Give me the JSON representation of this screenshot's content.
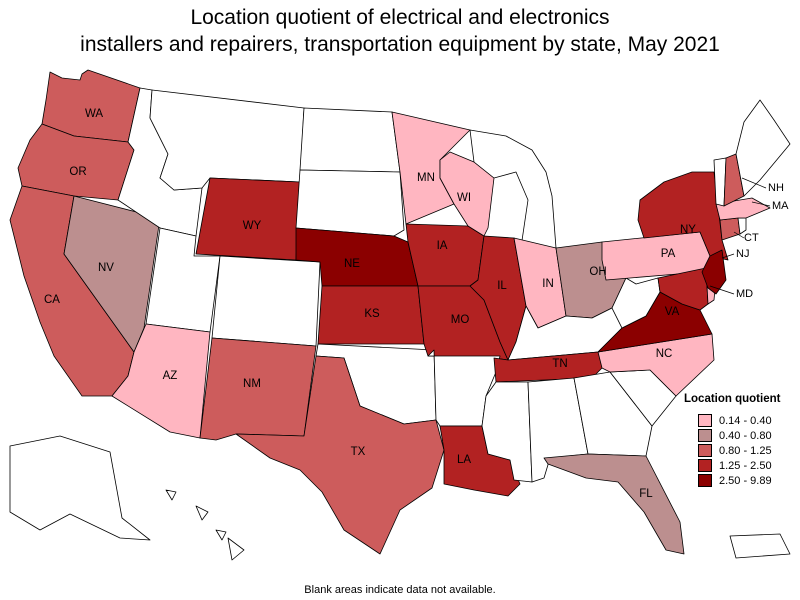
{
  "title_lines": [
    "Location quotient of electrical and electronics",
    "installers and repairers, transportation equipment by state, May 2021"
  ],
  "legend": {
    "title": "Location quotient",
    "bins": [
      {
        "label": "0.14 - 0.40",
        "color": "#ffb6c1"
      },
      {
        "label": "0.40 - 0.80",
        "color": "#bc8f8f"
      },
      {
        "label": "0.80 - 1.25",
        "color": "#cd5c5c"
      },
      {
        "label": "1.25 - 2.50",
        "color": "#b22222"
      },
      {
        "label": "2.50 - 9.89",
        "color": "#8b0000"
      }
    ]
  },
  "no_data_color": "#ffffff",
  "footnote": "Blank areas indicate data not available.",
  "state_bins": {
    "WA": 3,
    "OR": 3,
    "CA": 3,
    "NV": 2,
    "AZ": 1,
    "NM": 3,
    "TX": 3,
    "WY": 4,
    "NE": 5,
    "KS": 4,
    "IA": 4,
    "MO": 4,
    "IL": 4,
    "MN": 1,
    "WI": 1,
    "IN": 1,
    "OH": 2,
    "PA": 1,
    "NY": 4,
    "NJ": 5,
    "MD": 4,
    "VA": 5,
    "NC": 1,
    "TN": 4,
    "LA": 4,
    "FL": 2,
    "CT": 3,
    "MA": 1,
    "NH": 3,
    "DE": 1,
    "ID": 0,
    "MT": 0,
    "UT": 0,
    "CO": 0,
    "ND": 0,
    "SD": 0,
    "OK": 0,
    "AR": 0,
    "MS": 0,
    "AL": 0,
    "GA": 0,
    "SC": 0,
    "KY": 0,
    "WV": 0,
    "MI": 0,
    "VT": 0,
    "ME": 0,
    "RI": 0,
    "AK": 0,
    "HI": 0,
    "PR": 0
  },
  "labels": [
    "WA",
    "OR",
    "CA",
    "NV",
    "AZ",
    "NM",
    "TX",
    "WY",
    "NE",
    "KS",
    "IA",
    "MO",
    "IL",
    "MN",
    "WI",
    "IN",
    "OH",
    "PA",
    "NY",
    "VA",
    "NC",
    "TN",
    "LA",
    "FL"
  ],
  "callouts": [
    "NH",
    "MA",
    "CT",
    "NJ",
    "MD"
  ]
}
